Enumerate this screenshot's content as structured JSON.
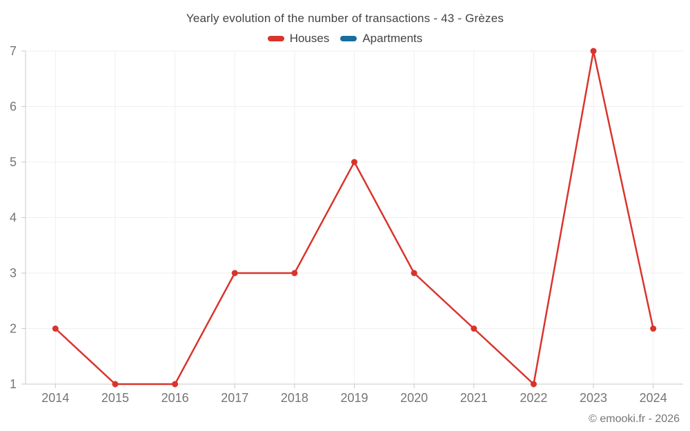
{
  "title": "Yearly evolution of the number of transactions - 43 - Grèzes",
  "footer": "© emooki.fr - 2026",
  "colors": {
    "houses": "#d8342c",
    "apartments": "#166f9d",
    "grid": "#efefef",
    "axis": "#c9c9c9",
    "axis_text": "#757575",
    "title_text": "#424242"
  },
  "chart_data": {
    "type": "line",
    "title": "Yearly evolution of the number of transactions - 43 - Grèzes",
    "categories": [
      "2014",
      "2015",
      "2016",
      "2017",
      "2018",
      "2019",
      "2020",
      "2021",
      "2022",
      "2023",
      "2024"
    ],
    "series": [
      {
        "name": "Houses",
        "color": "#d8342c",
        "values": [
          2,
          1,
          1,
          3,
          3,
          5,
          3,
          2,
          1,
          7,
          2
        ]
      },
      {
        "name": "Apartments",
        "color": "#166f9d",
        "values": []
      }
    ],
    "xlabel": "",
    "ylabel": "",
    "ylim": [
      1,
      7
    ],
    "yticks": [
      1,
      2,
      3,
      4,
      5,
      6,
      7
    ],
    "grid": true,
    "legend_position": "top"
  }
}
